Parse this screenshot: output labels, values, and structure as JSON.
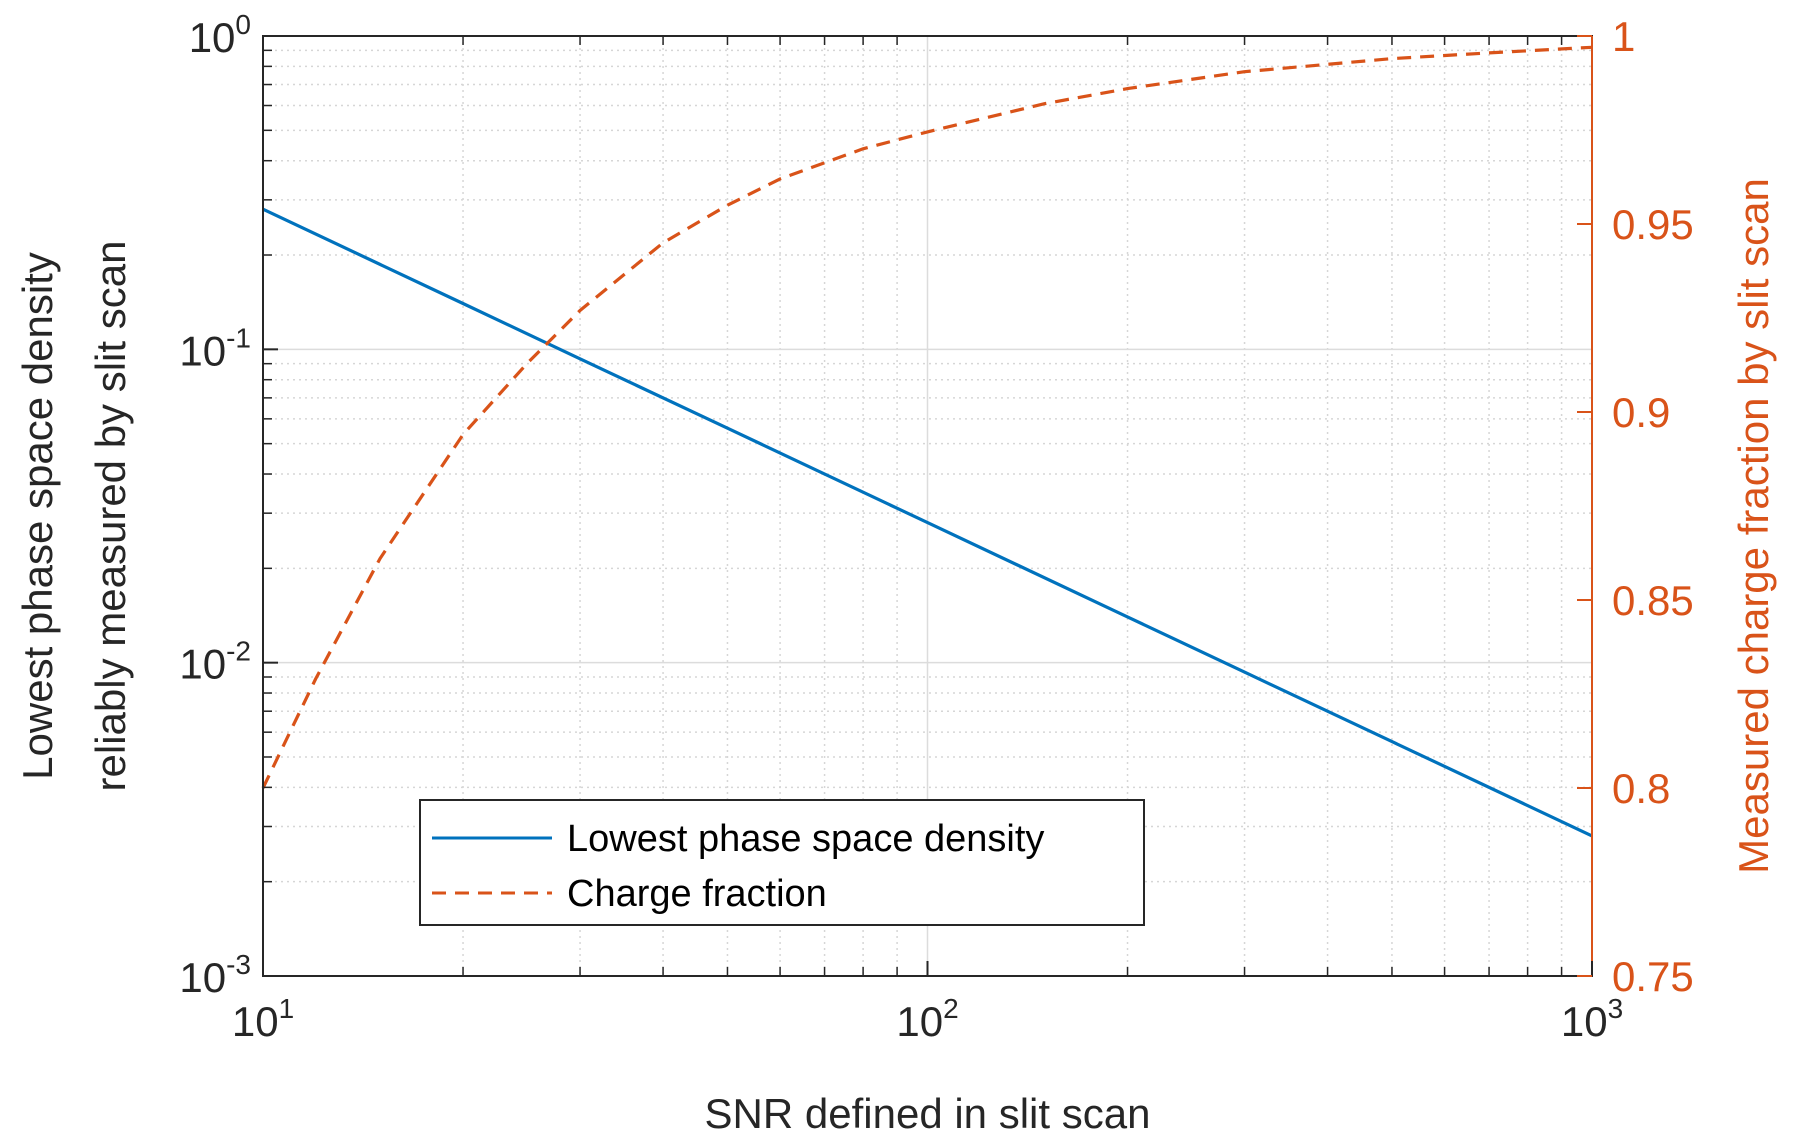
{
  "chart_data": {
    "type": "line",
    "title": "",
    "xlabel": "SNR defined in slit scan",
    "ylabel_left": [
      "Lowest phase space density",
      "reliably measured by slit scan"
    ],
    "ylabel_right": "Measured charge fraction by slit scan",
    "xscale": "log",
    "yscale_left": "log",
    "yscale_right": "linear",
    "xlim": [
      10,
      1000
    ],
    "ylim_left": [
      0.001,
      1
    ],
    "ylim_right": [
      0.75,
      1
    ],
    "grid": true,
    "legend_position": "bottom-center",
    "x_ticks": [
      {
        "base": "10",
        "exp": "1",
        "value": 10
      },
      {
        "base": "10",
        "exp": "2",
        "value": 100
      },
      {
        "base": "10",
        "exp": "3",
        "value": 1000
      }
    ],
    "y_ticks_left": [
      {
        "base": "10",
        "exp": "0",
        "value": 1
      },
      {
        "base": "10",
        "exp": "-1",
        "value": 0.1
      },
      {
        "base": "10",
        "exp": "-2",
        "value": 0.01
      },
      {
        "base": "10",
        "exp": "-3",
        "value": 0.001
      }
    ],
    "y_ticks_right": [
      "0.75",
      "0.8",
      "0.85",
      "0.9",
      "0.95",
      "1"
    ],
    "series": [
      {
        "name": "Lowest phase space density",
        "axis": "left",
        "color": "#0072BD",
        "style": "solid",
        "x": [
          10,
          20,
          30,
          50,
          100,
          200,
          300,
          500,
          1000
        ],
        "y": [
          0.28,
          0.14,
          0.0933,
          0.056,
          0.028,
          0.014,
          0.00933,
          0.0056,
          0.0028
        ]
      },
      {
        "name": "Charge fraction",
        "axis": "right",
        "color": "#D95319",
        "style": "dashed",
        "x": [
          10,
          12,
          15,
          20,
          25,
          30,
          40,
          50,
          60,
          80,
          100,
          150,
          200,
          300,
          500,
          700,
          1000
        ],
        "y": [
          0.8,
          0.829,
          0.861,
          0.894,
          0.913,
          0.927,
          0.945,
          0.955,
          0.962,
          0.97,
          0.9745,
          0.982,
          0.986,
          0.9905,
          0.994,
          0.9955,
          0.997
        ]
      }
    ]
  }
}
